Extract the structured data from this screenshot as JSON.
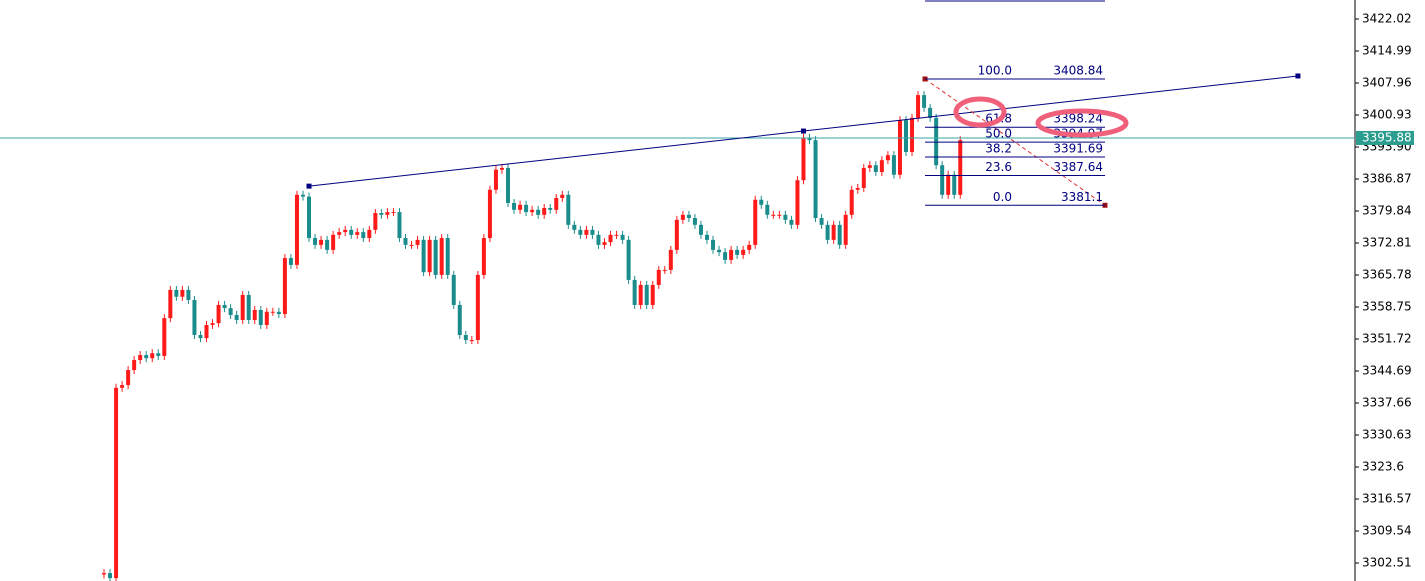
{
  "chart_data": {
    "type": "candlestick",
    "open": 3300.0,
    "close": [
      3300.3,
      3299.2,
      3341.0,
      3341.6,
      3344.9,
      3347.1,
      3348.2,
      3347.5,
      3348.6,
      3348.0,
      3356.3,
      3362.5,
      3361.0,
      3362.5,
      3360.3,
      3352.6,
      3351.9,
      3354.8,
      3355.2,
      3359.2,
      3358.5,
      3357.0,
      3355.9,
      3361.4,
      3355.9,
      3358.1,
      3354.8,
      3357.7,
      3357.7,
      3357.2,
      3369.5,
      3368.0,
      3383.4,
      3383.0,
      3373.9,
      3372.4,
      3373.5,
      3371.3,
      3374.6,
      3375.2,
      3375.7,
      3374.6,
      3375.2,
      3373.9,
      3375.7,
      3379.4,
      3379.0,
      3379.6,
      3379.6,
      3373.9,
      3372.4,
      3372.4,
      3373.5,
      3366.4,
      3373.5,
      3365.8,
      3373.9,
      3365.8,
      3359.2,
      3352.6,
      3351.5,
      3351.5,
      3365.8,
      3373.9,
      3384.5,
      3388.9,
      3389.3,
      3381.6,
      3380.1,
      3381.2,
      3379.6,
      3380.1,
      3379.0,
      3380.5,
      3380.1,
      3382.7,
      3383.4,
      3376.8,
      3375.7,
      3374.6,
      3375.7,
      3374.6,
      3372.4,
      3373.0,
      3374.6,
      3374.6,
      3373.5,
      3364.7,
      3359.2,
      3363.6,
      3359.2,
      3363.6,
      3366.9,
      3366.9,
      3371.3,
      3377.9,
      3379.0,
      3378.3,
      3376.8,
      3374.6,
      3373.5,
      3371.3,
      3370.8,
      3369.1,
      3371.3,
      3370.2,
      3371.3,
      3372.4,
      3382.3,
      3381.2,
      3379.0,
      3379.0,
      3379.0,
      3377.9,
      3376.8,
      3386.6,
      3395.9,
      3395.4,
      3378.3,
      3376.8,
      3373.5,
      3376.8,
      3372.4,
      3379.0,
      3384.5,
      3384.9,
      3389.3,
      3389.9,
      3388.4,
      3391.0,
      3392.1,
      3387.8,
      3399.8,
      3392.8,
      3400.3,
      3405.3,
      3402.5,
      3400.3,
      3389.9,
      3383.4,
      3387.8,
      3383.4,
      3395.4
    ],
    "up_color": "#ff1a1a",
    "down_color": "#1a8c8c",
    "ylim": [
      3298.56,
      3426.19
    ],
    "yticks": [
      3422.02,
      3414.99,
      3407.96,
      3400.93,
      {
        "value": 3393.9,
        "label": "3393.90"
      },
      3386.87,
      3379.84,
      3372.81,
      3365.78,
      3358.75,
      3351.72,
      3344.69,
      3337.66,
      3330.63,
      3323.6,
      3316.57,
      3309.54,
      3302.51
    ],
    "current_price": 3395.88,
    "trendline": {
      "x": [
        34,
        116,
        198
      ],
      "values": [
        3385.3,
        3397.4,
        3409.5
      ],
      "color": "#000080"
    },
    "fibonacci": {
      "color": "#000080",
      "line_color": "#e03030",
      "levels": [
        {
          "label": "100.0",
          "price": 3408.84
        },
        {
          "label": "61.8",
          "price": 3398.24
        },
        {
          "label": "50.0",
          "price": 3394.97
        },
        {
          "label": "38.2",
          "price": 3391.69
        },
        {
          "label": "23.6",
          "price": 3387.64
        },
        {
          "label": "0.0",
          "price": 3381.1
        }
      ]
    }
  }
}
